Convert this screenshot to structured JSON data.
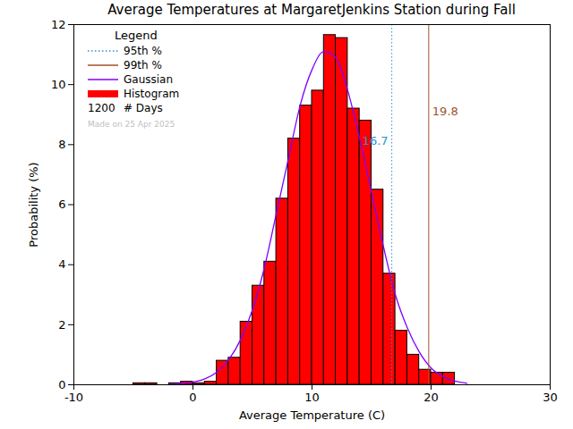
{
  "chart_data": {
    "type": "histogram",
    "title": "Average Temperatures at MargaretJenkins Station during Fall",
    "x_label": "Average Temperature (C)",
    "y_label": "Probability (%)",
    "xlim": [
      -10,
      30
    ],
    "xticks": [
      -10,
      0,
      10,
      20,
      30
    ],
    "ylim": [
      0,
      12
    ],
    "yticks": [
      0,
      2,
      4,
      6,
      8,
      10,
      12
    ],
    "bins": [
      -5,
      -4,
      -3,
      -2,
      -1,
      0,
      1,
      2,
      3,
      4,
      5,
      6,
      7,
      8,
      9,
      10,
      11,
      12,
      13,
      14,
      15,
      16,
      17,
      18,
      19,
      20,
      21,
      22
    ],
    "legend": "top-left",
    "legend_title": "Legend",
    "days": 1200,
    "days_label": "# Days",
    "note": "Made on 25 Apr 2025",
    "series": [
      {
        "name": "95th %",
        "type": "rule",
        "color": "#2a8fd0",
        "line_style": "dotted",
        "value": 16.7
      },
      {
        "name": "99th %",
        "type": "rule",
        "color": "#a0522d",
        "line_style": "solid",
        "value": 19.8
      },
      {
        "name": "Gaussian",
        "type": "line",
        "color": "#8000ff",
        "x": [
          -2,
          -1,
          0,
          1,
          2,
          3,
          4,
          5,
          6,
          7,
          8,
          9,
          10,
          11,
          12,
          13,
          14,
          15,
          16,
          17,
          18,
          19,
          20,
          21,
          22,
          23
        ],
        "values": [
          0.01,
          0.04,
          0.09,
          0.2,
          0.42,
          0.83,
          1.5,
          2.5,
          3.9,
          5.7,
          7.5,
          9.3,
          10.5,
          11.1,
          10.9,
          9.8,
          8.2,
          6.4,
          4.6,
          3.0,
          1.9,
          1.1,
          0.56,
          0.27,
          0.12,
          0.05
        ]
      },
      {
        "name": "Histogram",
        "type": "bar",
        "color": "#ff0000",
        "values": [
          0.05,
          0.05,
          0,
          0.05,
          0.1,
          0.05,
          0.1,
          0.8,
          0.9,
          2.1,
          3.3,
          4.1,
          6.2,
          8.2,
          9.3,
          9.8,
          11.65,
          11.55,
          9.2,
          8.8,
          6.5,
          3.7,
          1.8,
          1.0,
          0.5,
          0.4,
          0.4
        ]
      }
    ]
  }
}
